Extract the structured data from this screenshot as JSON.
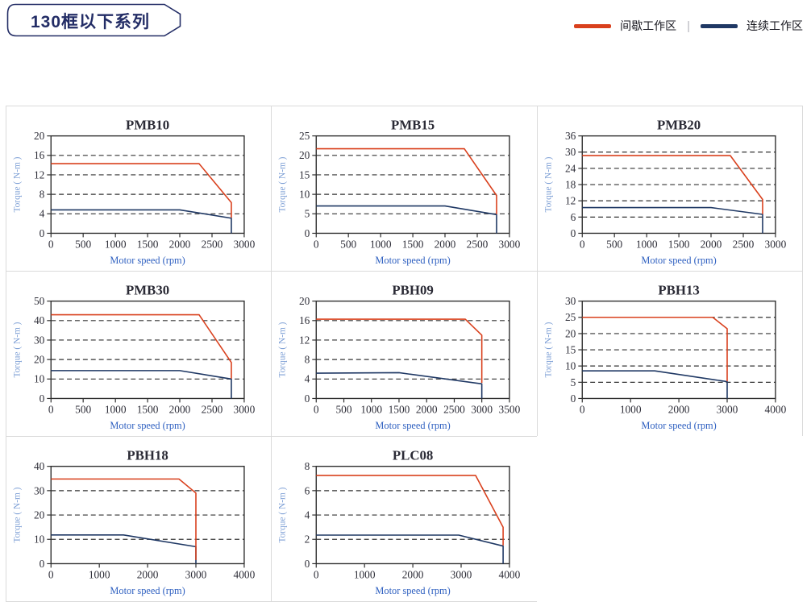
{
  "header": {
    "badge": "130框以下系列"
  },
  "legend": {
    "intermittent_label": "间歇工作区",
    "continuous_label": "连续工作区",
    "separator": "|"
  },
  "colors": {
    "red": "#d9401d",
    "navy": "#1f3864",
    "grid": "#333333",
    "axis": "#2e2e2e",
    "tick_text": "#2e2e38",
    "title_text": "#2b2b36",
    "ylabel_text": "#7d9fd5",
    "xlabel_text": "#3061c1",
    "cell_border": "#dadada",
    "badge": "#232d66"
  },
  "chart_data": [
    {
      "type": "line",
      "title": "PMB10",
      "xlabel": "Motor speed (rpm)",
      "ylabel": "Torque ( N-m )",
      "xlim": [
        0,
        3000
      ],
      "xstep": 500,
      "ylim": [
        0,
        20
      ],
      "ystep": 4,
      "series": [
        {
          "name": "间歇工作区",
          "color": "red",
          "points": [
            [
              0,
              14.3
            ],
            [
              2300,
              14.3
            ],
            [
              2800,
              6.3
            ],
            [
              2800,
              3.2
            ]
          ]
        },
        {
          "name": "连续工作区",
          "color": "navy",
          "points": [
            [
              0,
              4.8
            ],
            [
              2000,
              4.8
            ],
            [
              2800,
              3.1
            ],
            [
              2800,
              0
            ]
          ]
        }
      ]
    },
    {
      "type": "line",
      "title": "PMB15",
      "xlabel": "Motor speed (rpm)",
      "ylabel": "Torque ( N-m )",
      "xlim": [
        0,
        3000
      ],
      "xstep": 500,
      "ylim": [
        0,
        25
      ],
      "ystep": 5,
      "series": [
        {
          "name": "间歇工作区",
          "color": "red",
          "points": [
            [
              0,
              21.7
            ],
            [
              2300,
              21.7
            ],
            [
              2800,
              9.7
            ],
            [
              2800,
              4.9
            ]
          ]
        },
        {
          "name": "连续工作区",
          "color": "navy",
          "points": [
            [
              0,
              7
            ],
            [
              2000,
              7
            ],
            [
              2800,
              4.8
            ],
            [
              2800,
              0
            ]
          ]
        }
      ]
    },
    {
      "type": "line",
      "title": "PMB20",
      "xlabel": "Motor speed (rpm)",
      "ylabel": "Torque ( N-m )",
      "xlim": [
        0,
        3000
      ],
      "xstep": 500,
      "ylim": [
        0,
        36
      ],
      "ystep": 6,
      "series": [
        {
          "name": "间歇工作区",
          "color": "red",
          "points": [
            [
              0,
              28.7
            ],
            [
              2300,
              28.7
            ],
            [
              2800,
              12.5
            ],
            [
              2800,
              7.1
            ]
          ]
        },
        {
          "name": "连续工作区",
          "color": "navy",
          "points": [
            [
              0,
              9.5
            ],
            [
              2000,
              9.5
            ],
            [
              2800,
              7
            ],
            [
              2800,
              0
            ]
          ]
        }
      ]
    },
    {
      "type": "line",
      "title": "PMB30",
      "xlabel": "Motor speed (rpm)",
      "ylabel": "Torque ( N-m )",
      "xlim": [
        0,
        3000
      ],
      "xstep": 500,
      "ylim": [
        0,
        50
      ],
      "ystep": 10,
      "series": [
        {
          "name": "间歇工作区",
          "color": "red",
          "points": [
            [
              0,
              43
            ],
            [
              2300,
              43
            ],
            [
              2800,
              18.5
            ],
            [
              2800,
              10.2
            ]
          ]
        },
        {
          "name": "连续工作区",
          "color": "navy",
          "points": [
            [
              0,
              14.3
            ],
            [
              2000,
              14.3
            ],
            [
              2800,
              10
            ],
            [
              2800,
              0
            ]
          ]
        }
      ]
    },
    {
      "type": "line",
      "title": "PBH09",
      "xlabel": "Motor speed (rpm)",
      "ylabel": "Torque ( N-m )",
      "xlim": [
        0,
        3500
      ],
      "xstep": 500,
      "ylim": [
        0,
        20
      ],
      "ystep": 4,
      "series": [
        {
          "name": "间歇工作区",
          "color": "red",
          "points": [
            [
              0,
              16.3
            ],
            [
              2700,
              16.3
            ],
            [
              3000,
              13
            ],
            [
              3000,
              3.2
            ]
          ]
        },
        {
          "name": "连续工作区",
          "color": "navy",
          "points": [
            [
              0,
              5.2
            ],
            [
              1500,
              5.3
            ],
            [
              3000,
              3
            ],
            [
              3000,
              0
            ]
          ]
        }
      ]
    },
    {
      "type": "line",
      "title": "PBH13",
      "xlabel": "Motor speed (rpm)",
      "ylabel": "Torque ( N-m )",
      "xlim": [
        0,
        4000
      ],
      "xstep": 1000,
      "ylim": [
        0,
        30
      ],
      "ystep": 5,
      "series": [
        {
          "name": "间歇工作区",
          "color": "red",
          "points": [
            [
              0,
              25
            ],
            [
              2700,
              25
            ],
            [
              3000,
              21.5
            ],
            [
              3000,
              5.3
            ]
          ]
        },
        {
          "name": "连续工作区",
          "color": "navy",
          "points": [
            [
              0,
              8.5
            ],
            [
              1500,
              8.5
            ],
            [
              3000,
              5.2
            ],
            [
              3000,
              0
            ]
          ]
        }
      ]
    },
    {
      "type": "line",
      "title": "PBH18",
      "xlabel": "Motor speed (rpm)",
      "ylabel": "Torque ( N-m )",
      "xlim": [
        0,
        4000
      ],
      "xstep": 1000,
      "ylim": [
        0,
        40
      ],
      "ystep": 10,
      "series": [
        {
          "name": "间歇工作区",
          "color": "red",
          "points": [
            [
              0,
              34.8
            ],
            [
              2650,
              34.8
            ],
            [
              3000,
              29
            ],
            [
              3000,
              1.5
            ]
          ]
        },
        {
          "name": "连续工作区",
          "color": "navy",
          "points": [
            [
              0,
              11.8
            ],
            [
              1500,
              11.8
            ],
            [
              3000,
              7
            ],
            [
              3000,
              0
            ]
          ]
        }
      ]
    },
    {
      "type": "line",
      "title": "PLC08",
      "xlabel": "Motor speed (rpm)",
      "ylabel": "Torque ( N-m )",
      "xlim": [
        0,
        4000
      ],
      "xstep": 1000,
      "ylim": [
        0,
        8
      ],
      "ystep": 2,
      "series": [
        {
          "name": "间歇工作区",
          "color": "red",
          "points": [
            [
              0,
              7.25
            ],
            [
              3300,
              7.25
            ],
            [
              3870,
              3
            ],
            [
              3870,
              1.5
            ]
          ]
        },
        {
          "name": "连续工作区",
          "color": "navy",
          "points": [
            [
              0,
              2.35
            ],
            [
              2950,
              2.35
            ],
            [
              3870,
              1.45
            ],
            [
              3870,
              0
            ]
          ]
        }
      ]
    }
  ]
}
